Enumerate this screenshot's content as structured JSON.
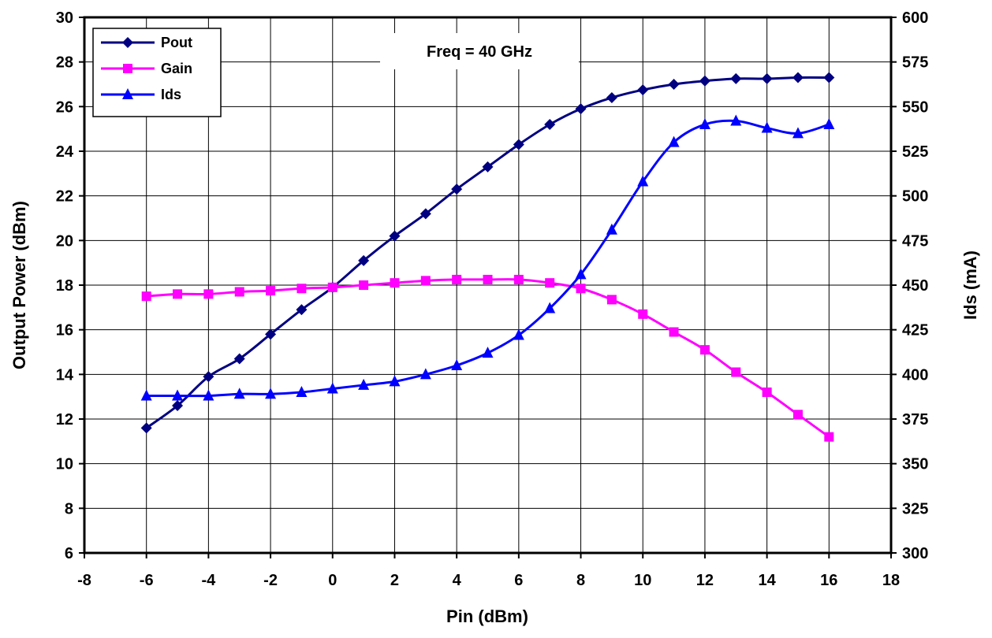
{
  "chart_data": {
    "type": "line",
    "annotation": "Freq = 40 GHz",
    "xlabel": "Pin (dBm)",
    "ylabel_left": "Output Power (dBm)",
    "ylabel_right": "Ids (mA)",
    "xlim": [
      -8,
      18
    ],
    "ylim_left": [
      6,
      30
    ],
    "ylim_right": [
      300,
      600
    ],
    "x_ticks": [
      -8,
      -6,
      -4,
      -2,
      0,
      2,
      4,
      6,
      8,
      10,
      12,
      14,
      16,
      18
    ],
    "y_ticks_left": [
      6,
      8,
      10,
      12,
      14,
      16,
      18,
      20,
      22,
      24,
      26,
      28,
      30
    ],
    "y_ticks_right": [
      300,
      325,
      350,
      375,
      400,
      425,
      450,
      475,
      500,
      525,
      550,
      575,
      600
    ],
    "grid": true,
    "legend_position": "top-left",
    "x": [
      -6,
      -5,
      -4,
      -3,
      -2,
      -1,
      0,
      1,
      2,
      3,
      4,
      5,
      6,
      7,
      8,
      9,
      10,
      11,
      12,
      13,
      14,
      15,
      16
    ],
    "series": [
      {
        "name": "Pout",
        "axis": "left",
        "color": "#000080",
        "marker": "diamond",
        "values": [
          11.6,
          12.6,
          13.9,
          14.7,
          15.8,
          16.9,
          17.9,
          19.1,
          20.2,
          21.2,
          22.3,
          23.3,
          24.3,
          25.2,
          25.9,
          26.4,
          26.75,
          27.0,
          27.15,
          27.25,
          27.25,
          27.3,
          27.3
        ]
      },
      {
        "name": "Gain",
        "axis": "left",
        "color": "#ff00ff",
        "marker": "square",
        "values": [
          17.5,
          17.6,
          17.6,
          17.7,
          17.75,
          17.85,
          17.9,
          18.0,
          18.1,
          18.2,
          18.25,
          18.25,
          18.25,
          18.1,
          17.85,
          17.35,
          16.7,
          15.9,
          15.1,
          14.1,
          13.2,
          12.2,
          11.2
        ]
      },
      {
        "name": "Ids",
        "axis": "right",
        "color": "#0000ff",
        "marker": "triangle",
        "values": [
          388,
          388,
          388,
          389,
          389,
          390,
          392,
          394,
          396,
          400,
          405,
          412,
          422,
          437,
          456,
          481,
          508,
          530,
          540,
          542,
          538,
          535,
          540
        ]
      }
    ]
  }
}
